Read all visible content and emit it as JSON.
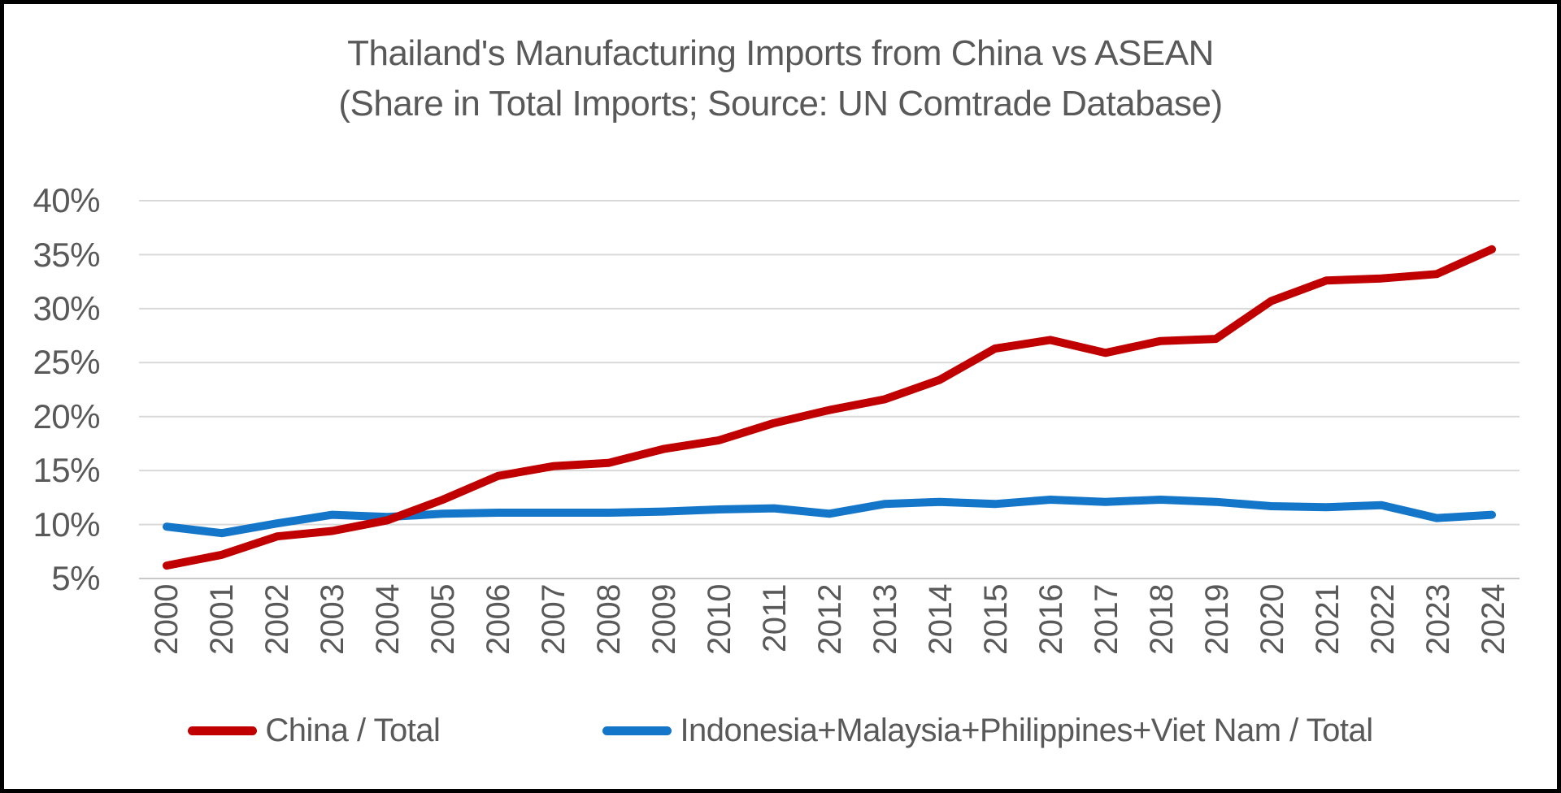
{
  "title": {
    "line1": "Thailand's Manufacturing Imports from China vs ASEAN",
    "line2": "(Share in Total Imports; Source: UN Comtrade Database)"
  },
  "chart_data": {
    "type": "line",
    "title": "Thailand's Manufacturing Imports from China vs ASEAN",
    "subtitle": "(Share in Total Imports; Source: UN Comtrade Database)",
    "x_labels": [
      "2000",
      "2001",
      "2002",
      "2003",
      "2004",
      "2005",
      "2006",
      "2007",
      "2008",
      "2009",
      "2010",
      "2011",
      "2012",
      "2013",
      "2014",
      "2015",
      "2016",
      "2017",
      "2018",
      "2019",
      "2020",
      "2021",
      "2022",
      "2023",
      "2024"
    ],
    "y_ticks": [
      "40%",
      "35%",
      "30%",
      "25%",
      "20%",
      "15%",
      "10%",
      "5%"
    ],
    "y_tick_values": [
      40,
      35,
      30,
      25,
      20,
      15,
      10,
      5
    ],
    "ylim": [
      5,
      40
    ],
    "grid": true,
    "legend_position": "bottom",
    "series": [
      {
        "name": "China / Total",
        "color": "#C00000",
        "values": [
          6.2,
          7.2,
          8.9,
          9.4,
          10.4,
          12.3,
          14.5,
          15.4,
          15.7,
          17.0,
          17.8,
          19.4,
          20.6,
          21.6,
          23.4,
          26.3,
          27.1,
          25.9,
          27.0,
          27.2,
          30.7,
          32.6,
          32.8,
          33.2,
          35.5
        ]
      },
      {
        "name": "Indonesia+Malaysia+Philippines+Viet Nam / Total",
        "color": "#1476C8",
        "values": [
          9.8,
          9.2,
          10.1,
          10.9,
          10.7,
          11.0,
          11.1,
          11.1,
          11.1,
          11.2,
          11.4,
          11.5,
          11.0,
          11.9,
          12.1,
          11.9,
          12.3,
          12.1,
          12.3,
          12.1,
          11.7,
          11.6,
          11.8,
          10.6,
          10.9
        ]
      }
    ]
  },
  "colors": {
    "text": "#595959",
    "gridline": "#D9D9D9",
    "axis_line": "#C9C9C9",
    "background": "#FFFFFF",
    "border": "#000000"
  }
}
